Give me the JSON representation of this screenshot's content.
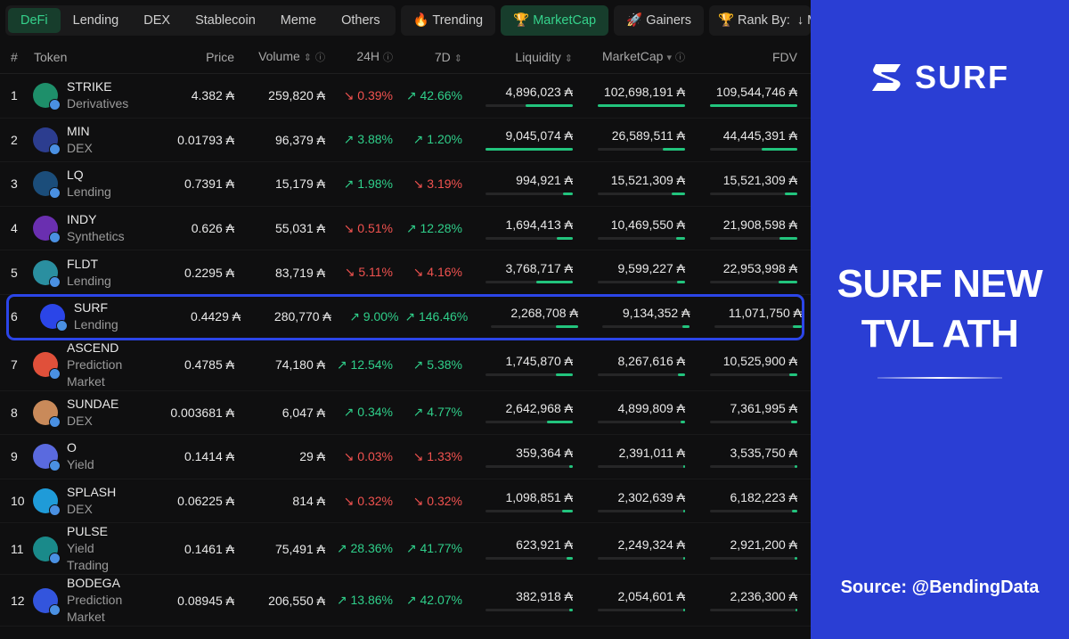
{
  "tabs": {
    "categories": [
      "DeFi",
      "Lending",
      "DEX",
      "Stablecoin",
      "Meme",
      "Others"
    ],
    "views": [
      "🔥 Trending",
      "🏆 MarketCap",
      "🚀 Gainers"
    ],
    "rank_by": {
      "label": "🏆 Rank By:",
      "value": "↓ MarketC"
    }
  },
  "table": {
    "columns": [
      "#",
      "Token",
      "Price",
      "Volume",
      "24H",
      "7D",
      "Liquidity",
      "MarketCap",
      "FDV"
    ],
    "rows": [
      {
        "rank": 1,
        "name": "STRIKE",
        "category": "Derivatives",
        "price": "4.382 ₳",
        "volume": "259,820 ₳",
        "change_24h": "↘ 0.39%",
        "change_7d": "↗ 42.66%",
        "liquidity": "4,896,023 ₳",
        "marketcap": "102,698,191 ₳",
        "fdv": "109,544,746 ₳"
      },
      {
        "rank": 2,
        "name": "MIN",
        "category": "DEX",
        "price": "0.01793 ₳",
        "volume": "96,379 ₳",
        "change_24h": "↗ 3.88%",
        "change_7d": "↗ 1.20%",
        "liquidity": "9,045,074 ₳",
        "marketcap": "26,589,511 ₳",
        "fdv": "44,445,391 ₳"
      },
      {
        "rank": 3,
        "name": "LQ",
        "category": "Lending",
        "price": "0.7391 ₳",
        "volume": "15,179 ₳",
        "change_24h": "↗ 1.98%",
        "change_7d": "↘ 3.19%",
        "liquidity": "994,921 ₳",
        "marketcap": "15,521,309 ₳",
        "fdv": "15,521,309 ₳"
      },
      {
        "rank": 4,
        "name": "INDY",
        "category": "Synthetics",
        "price": "0.626 ₳",
        "volume": "55,031 ₳",
        "change_24h": "↘ 0.51%",
        "change_7d": "↗ 12.28%",
        "liquidity": "1,694,413 ₳",
        "marketcap": "10,469,550 ₳",
        "fdv": "21,908,598 ₳"
      },
      {
        "rank": 5,
        "name": "FLDT",
        "category": "Lending",
        "price": "0.2295 ₳",
        "volume": "83,719 ₳",
        "change_24h": "↘ 5.11%",
        "change_7d": "↘ 4.16%",
        "liquidity": "3,768,717 ₳",
        "marketcap": "9,599,227 ₳",
        "fdv": "22,953,998 ₳"
      },
      {
        "rank": 6,
        "name": "SURF",
        "category": "Lending",
        "price": "0.4429 ₳",
        "volume": "280,770 ₳",
        "change_24h": "↗ 9.00%",
        "change_7d": "↗ 146.46%",
        "liquidity": "2,268,708 ₳",
        "marketcap": "9,134,352 ₳",
        "fdv": "11,071,750 ₳"
      },
      {
        "rank": 7,
        "name": "ASCEND",
        "category": "Prediction Market",
        "price": "0.4785 ₳",
        "volume": "74,180 ₳",
        "change_24h": "↗ 12.54%",
        "change_7d": "↗ 5.38%",
        "liquidity": "1,745,870 ₳",
        "marketcap": "8,267,616 ₳",
        "fdv": "10,525,900 ₳"
      },
      {
        "rank": 8,
        "name": "SUNDAE",
        "category": "DEX",
        "price": "0.003681 ₳",
        "volume": "6,047 ₳",
        "change_24h": "↗ 0.34%",
        "change_7d": "↗ 4.77%",
        "liquidity": "2,642,968 ₳",
        "marketcap": "4,899,809 ₳",
        "fdv": "7,361,995 ₳"
      },
      {
        "rank": 9,
        "name": "O",
        "category": "Yield",
        "price": "0.1414 ₳",
        "volume": "29 ₳",
        "change_24h": "↘ 0.03%",
        "change_7d": "↘ 1.33%",
        "liquidity": "359,364 ₳",
        "marketcap": "2,391,011 ₳",
        "fdv": "3,535,750 ₳"
      },
      {
        "rank": 10,
        "name": "SPLASH",
        "category": "DEX",
        "price": "0.06225 ₳",
        "volume": "814 ₳",
        "change_24h": "↘ 0.32%",
        "change_7d": "↘ 0.32%",
        "liquidity": "1,098,851 ₳",
        "marketcap": "2,302,639 ₳",
        "fdv": "6,182,223 ₳"
      },
      {
        "rank": 11,
        "name": "PULSE",
        "category": "Yield Trading",
        "price": "0.1461 ₳",
        "volume": "75,491 ₳",
        "change_24h": "↗ 28.36%",
        "change_7d": "↗ 41.77%",
        "liquidity": "623,921 ₳",
        "marketcap": "2,249,324 ₳",
        "fdv": "2,921,200 ₳"
      },
      {
        "rank": 12,
        "name": "BODEGA",
        "category": "Prediction Market",
        "price": "0.08945 ₳",
        "volume": "206,550 ₳",
        "change_24h": "↗ 13.86%",
        "change_7d": "↗ 42.07%",
        "liquidity": "382,918 ₳",
        "marketcap": "2,054,601 ₳",
        "fdv": "2,236,300 ₳"
      }
    ]
  },
  "side_panel": {
    "logo": "SURF",
    "headline": [
      "SURF NEW",
      "TVL ATH"
    ],
    "source": "Source: @BendingData"
  }
}
